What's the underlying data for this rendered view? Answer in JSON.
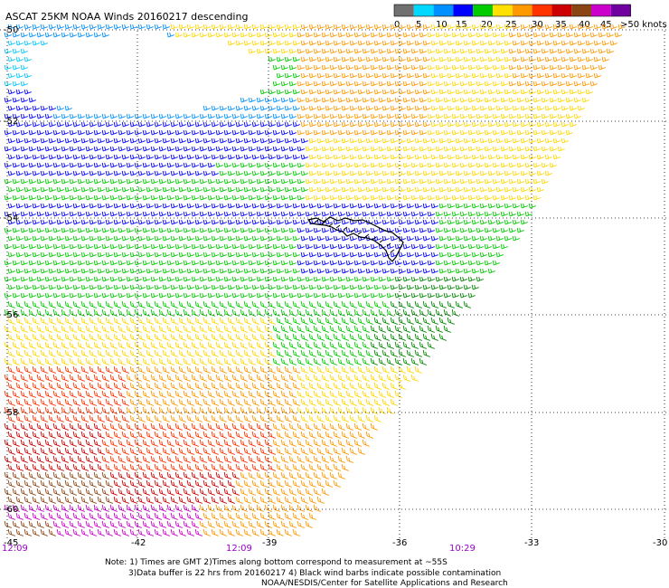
{
  "title": "ASCAT 25KM NOAA Winds 20160217 descending",
  "legend": {
    "ticks": [
      "0",
      "5",
      "10",
      "15",
      "20",
      "25",
      "30",
      "35",
      "40",
      "45",
      ">50 knots"
    ],
    "colors": [
      "#707070",
      "#00d8ff",
      "#0090ff",
      "#0000ff",
      "#00cc00",
      "#ffe000",
      "#ff9900",
      "#ff3300",
      "#cc0000",
      "#8b4513",
      "#cc00cc",
      "#7000a0"
    ]
  },
  "lat_labels": [
    "-50",
    "-52",
    "-54",
    "-56",
    "-58",
    "-60"
  ],
  "lon_labels": [
    "-45",
    "-42",
    "-39",
    "-36",
    "-33",
    "-30"
  ],
  "time_labels": [
    "12:09",
    "12:09",
    "10:29"
  ],
  "time_color": "#9900cc",
  "notes": [
    "Note: 1) Times are GMT 2)Times along bottom correspond to measurement at ~55S",
    "3)Data buffer is 22 hrs from 20160217 4) Black wind barbs indicate possible contamination",
    "NOAA/NESDIS/Center for Satellite Applications and Research"
  ],
  "wind_bands": {
    "gray": "#707070",
    "cyan": "#00c8ff",
    "blue_light": "#0090ff",
    "blue": "#0000ff",
    "green": "#00cc00",
    "yellow": "#ffd700",
    "orange": "#ff9900",
    "red": "#ff3300",
    "dark_red": "#cc0000",
    "brown": "#8b4513",
    "magenta": "#cc00cc",
    "purple": "#7000a0",
    "dark_green": "#008800",
    "contamination": "#000000"
  }
}
